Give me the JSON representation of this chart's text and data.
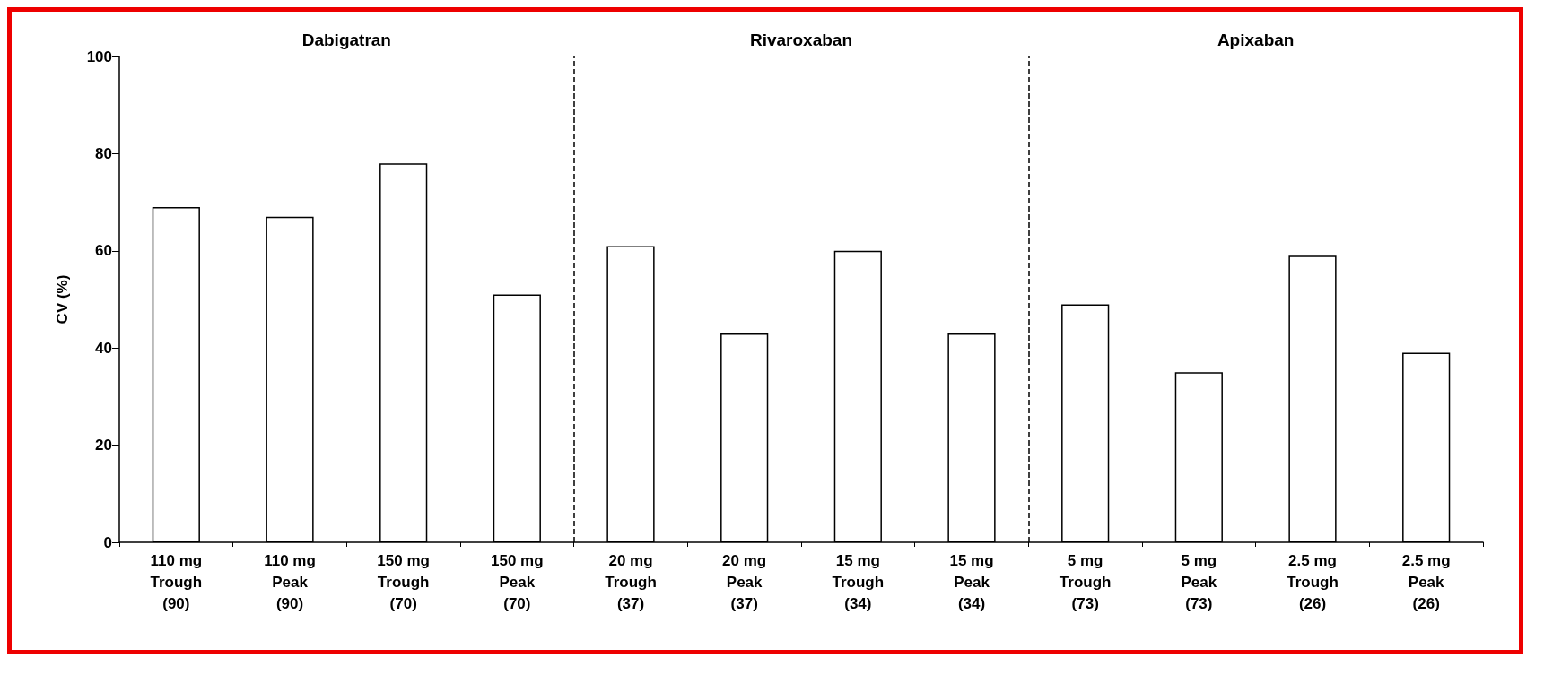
{
  "chart_data": {
    "type": "bar",
    "ylabel": "CV (%)",
    "categories": [
      "110 mg\nTrough\n(90)",
      "110 mg\nPeak\n(90)",
      "150 mg\nTrough\n(70)",
      "150 mg\nPeak\n(70)",
      "20 mg\nTrough\n(37)",
      "20 mg\nPeak\n(37)",
      "15 mg\nTrough\n(34)",
      "15 mg\nPeak\n(34)",
      "5 mg\nTrough\n(73)",
      "5 mg\nPeak\n(73)",
      "2.5 mg\nTrough\n(26)",
      "2.5 mg\nPeak\n(26)"
    ],
    "values": [
      69,
      67,
      78,
      51,
      61,
      43,
      60,
      43,
      49,
      35,
      59,
      39
    ],
    "color": "#ffffff",
    "ylim": [
      0,
      100
    ],
    "yticks": [
      0,
      20,
      40,
      60,
      80,
      100
    ],
    "grid": false,
    "annotations": [
      "Dabigatran",
      "Rivaroxaban",
      "Apixaban"
    ]
  }
}
